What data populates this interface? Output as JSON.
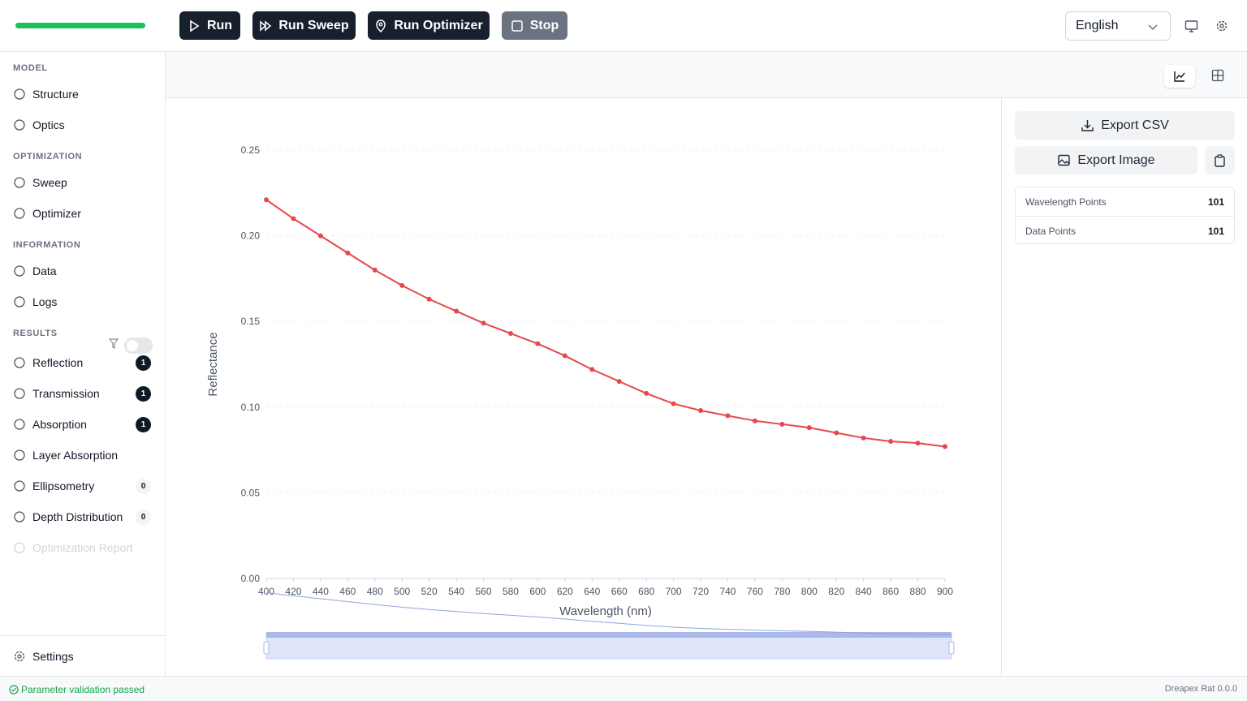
{
  "toolbar": {
    "buttons": [
      "Run",
      "Run Sweep",
      "Run Optimizer",
      "Stop"
    ],
    "language": "English"
  },
  "sidebar": {
    "sections": [
      {
        "title": "MODEL",
        "items": [
          {
            "label": "Structure"
          },
          {
            "label": "Optics"
          }
        ]
      },
      {
        "title": "OPTIMIZATION",
        "items": [
          {
            "label": "Sweep"
          },
          {
            "label": "Optimizer"
          }
        ]
      },
      {
        "title": "INFORMATION",
        "items": [
          {
            "label": "Data"
          },
          {
            "label": "Logs"
          }
        ]
      },
      {
        "title": "RESULTS",
        "items": [
          {
            "label": "Reflection",
            "count": 1
          },
          {
            "label": "Transmission",
            "count": 1
          },
          {
            "label": "Absorption",
            "count": 1
          },
          {
            "label": "Layer Absorption"
          },
          {
            "label": "Ellipsometry",
            "count": 0
          },
          {
            "label": "Depth Distribution",
            "count": 0
          },
          {
            "label": "Optimization Report",
            "disabled": true
          }
        ]
      }
    ],
    "settings": "Settings"
  },
  "chart_data": {
    "type": "line",
    "xlabel": "Wavelength (nm)",
    "ylabel": "Reflectance",
    "color": "#e5484d",
    "grid": true,
    "x": [
      400,
      420,
      440,
      460,
      480,
      500,
      520,
      540,
      560,
      580,
      600,
      620,
      640,
      660,
      680,
      700,
      720,
      740,
      760,
      780,
      800,
      820,
      840,
      860,
      880,
      900
    ],
    "values": [
      0.221,
      0.21,
      0.2,
      0.19,
      0.18,
      0.171,
      0.163,
      0.156,
      0.149,
      0.143,
      0.137,
      0.13,
      0.122,
      0.115,
      0.108,
      0.102,
      0.098,
      0.095,
      0.092,
      0.09,
      0.088,
      0.085,
      0.082,
      0.08,
      0.079,
      0.077
    ],
    "xlim": [
      400,
      900
    ],
    "xticks": [
      400,
      420,
      440,
      460,
      480,
      500,
      520,
      540,
      560,
      580,
      600,
      620,
      640,
      660,
      680,
      700,
      720,
      740,
      760,
      780,
      800,
      820,
      840,
      860,
      880,
      900
    ],
    "ylim": [
      0,
      0.25
    ],
    "yticks": [
      {
        "value": 0,
        "label": "0.00"
      },
      0.05,
      {
        "value": 0.1,
        "label": "0.10"
      },
      0.15,
      {
        "value": 0.2,
        "label": "0.20"
      },
      0.25
    ]
  },
  "panel": {
    "buttons": [
      "Export CSV",
      "Export Image"
    ],
    "stats": [
      {
        "label": "Wavelength Points",
        "value": 101
      },
      {
        "label": "Data Points",
        "value": 101
      }
    ]
  },
  "status": {
    "message": "Parameter validation passed",
    "version": "Dreapex Rat 0.0.0"
  }
}
